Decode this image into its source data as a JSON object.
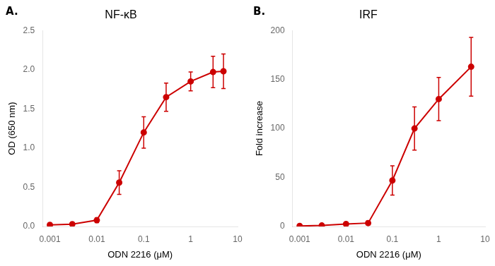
{
  "chart_data": [
    {
      "type": "line",
      "title": "NF-κB",
      "annotations": [
        "A."
      ],
      "xlabel": "ODN 2216 (μM)",
      "ylabel": "OD (650 nm)",
      "x": [
        0.001,
        0.003,
        0.01,
        0.03,
        0.1,
        0.3,
        1,
        3,
        5
      ],
      "values": [
        0.02,
        0.03,
        0.08,
        0.56,
        1.2,
        1.65,
        1.85,
        1.97,
        1.98
      ],
      "yerr": [
        0.02,
        0.02,
        0.03,
        0.15,
        0.2,
        0.18,
        0.12,
        0.2,
        0.22
      ],
      "color": "#cc0000",
      "marker": "circle",
      "line_style": "solid",
      "log": "x",
      "grid": false,
      "xlim": [
        0.0007,
        10
      ],
      "xticks": [
        0.001,
        0.01,
        0.1,
        1,
        10
      ],
      "ylim": [
        0,
        2.5
      ],
      "yticks": [
        {
          "value": 0,
          "label": "0.0"
        },
        0.5,
        {
          "value": 1,
          "label": "1.0"
        },
        1.5,
        {
          "value": 2,
          "label": "2.0"
        },
        2.5
      ]
    },
    {
      "type": "line",
      "title": "IRF",
      "annotations": [
        "B."
      ],
      "xlabel": "ODN 2216 (μM)",
      "ylabel": "Fold increase",
      "x": [
        0.001,
        0.003,
        0.01,
        0.03,
        0.1,
        0.3,
        1,
        5
      ],
      "values": [
        0.5,
        1.0,
        2.5,
        3.5,
        47,
        100,
        130,
        163
      ],
      "yerr": [
        0.5,
        0.5,
        1.5,
        2.0,
        15,
        22,
        22,
        30
      ],
      "color": "#cc0000",
      "marker": "circle",
      "line_style": "solid",
      "log": "x",
      "grid": false,
      "xlim": [
        0.0007,
        10
      ],
      "xticks": [
        0.001,
        0.01,
        0.1,
        1,
        10
      ],
      "ylim": [
        0,
        200
      ],
      "yticks": [
        0,
        50,
        100,
        150,
        200
      ]
    }
  ]
}
